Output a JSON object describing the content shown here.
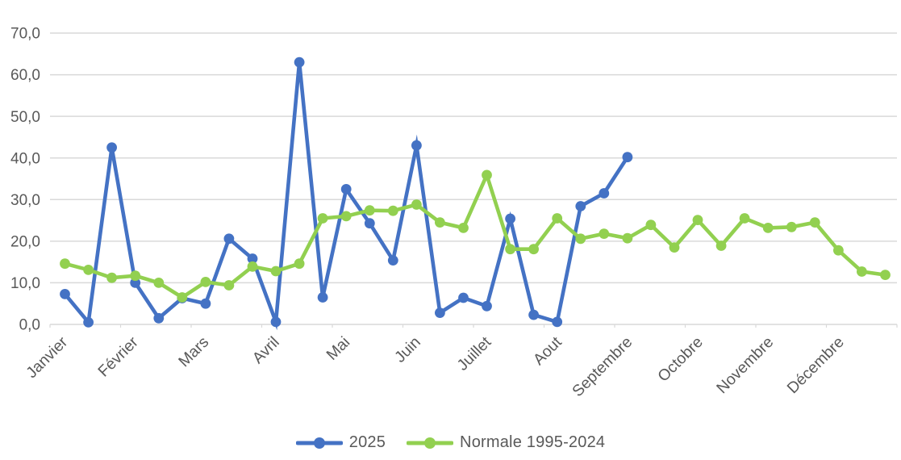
{
  "chart_data": {
    "type": "line",
    "title": "",
    "xlabel": "",
    "ylabel": "",
    "ylim": [
      0,
      70
    ],
    "grid": "horizontal",
    "legend_position": "bottom",
    "x_months": [
      "Janvier",
      "Février",
      "Mars",
      "Avril",
      "Mai",
      "Juin",
      "Juillet",
      "Aout",
      "Septembre",
      "Octobre",
      "Novembre",
      "Décembre"
    ],
    "points_per_month": 3,
    "y_ticks": [
      {
        "v": 0,
        "label": "0,0"
      },
      {
        "v": 10,
        "label": "10,0"
      },
      {
        "v": 20,
        "label": "20,0"
      },
      {
        "v": 30,
        "label": "30,0"
      },
      {
        "v": 40,
        "label": "40,0"
      },
      {
        "v": 50,
        "label": "50,0"
      },
      {
        "v": 60,
        "label": "60,0"
      },
      {
        "v": 70,
        "label": "70,0"
      }
    ],
    "series": [
      {
        "name": "2025",
        "color": "#4472C4",
        "values": [
          7.3,
          0.5,
          42.5,
          10.0,
          1.5,
          6.3,
          5.0,
          20.6,
          15.8,
          0.6,
          63.0,
          6.5,
          32.5,
          24.3,
          15.4,
          43.0,
          2.8,
          6.4,
          4.4,
          25.4,
          2.3,
          0.6,
          28.4,
          31.5,
          40.2
        ]
      },
      {
        "name": "Normale 1995-2024",
        "color": "#92D050",
        "values": [
          14.6,
          13.1,
          11.2,
          11.7,
          10.0,
          6.5,
          10.2,
          9.4,
          13.9,
          12.8,
          14.6,
          25.5,
          26.0,
          27.4,
          27.3,
          28.8,
          24.5,
          23.2,
          35.9,
          18.1,
          18.1,
          25.5,
          20.6,
          21.8,
          20.7,
          23.9,
          18.5,
          25.1,
          18.9,
          25.5,
          23.2,
          23.4,
          24.5,
          17.8,
          12.7,
          11.9
        ]
      }
    ],
    "colors": {
      "gridline": "#D9D9D9",
      "tick_label": "#595959",
      "month_label": "#595959"
    }
  }
}
